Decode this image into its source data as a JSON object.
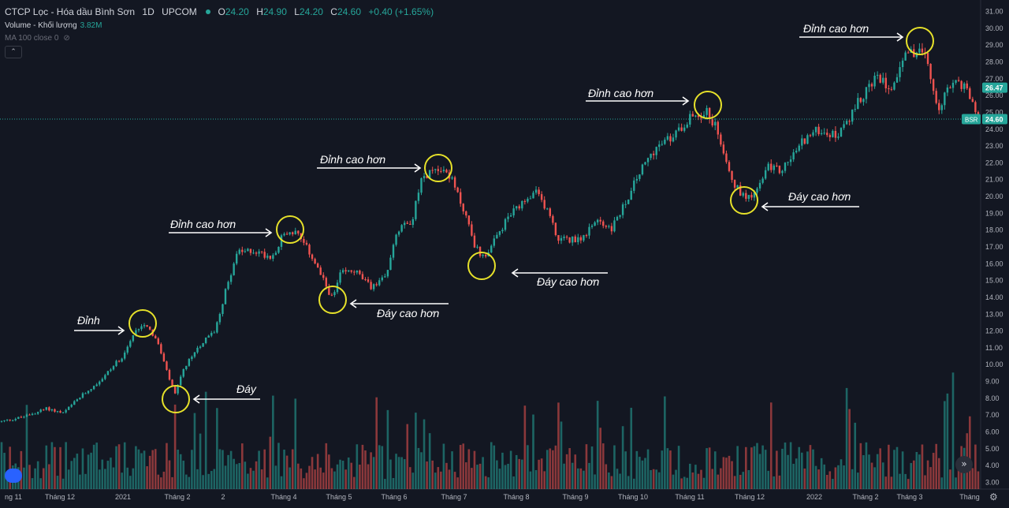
{
  "header": {
    "title": "CTCP Lọc - Hóa dầu Bình Sơn",
    "interval": "1D",
    "exchange": "UPCOM",
    "open_label": "O",
    "open": "24.20",
    "high_label": "H",
    "high": "24.90",
    "low_label": "L",
    "low": "24.20",
    "close_label": "C",
    "close": "24.60",
    "change": "+0.40 (+1.65%)"
  },
  "volume": {
    "label": "Volume - Khối lượng",
    "value": "3.82M"
  },
  "ma": {
    "label": "MA 100 close 0"
  },
  "icons": {
    "collapse": "chevron-up-icon",
    "eye": "eye-off-icon",
    "scroll": "scroll-forward-icon",
    "logo": "tradingview-logo-icon",
    "settings": "gear-icon"
  },
  "colors": {
    "background": "#131722",
    "up": "#26a69a",
    "down": "#ef5350",
    "annotation_circle": "#e6e12a",
    "annotation_text": "#ffffff"
  },
  "chart_data": {
    "type": "candlestick",
    "ylim": [
      2.6,
      31.4
    ],
    "y_ticks": [
      "3.00",
      "4.00",
      "5.00",
      "6.00",
      "7.00",
      "8.00",
      "9.00",
      "10.00",
      "11.00",
      "12.00",
      "13.00",
      "14.00",
      "15.00",
      "16.00",
      "17.00",
      "18.00",
      "19.00",
      "20.00",
      "21.00",
      "22.00",
      "23.00",
      "24.00",
      "25.00",
      "26.00",
      "27.00",
      "28.00",
      "29.00",
      "30.00",
      "31.00"
    ],
    "x_ticks": [
      "ng 11",
      "Tháng 12",
      "2021",
      "Tháng 2",
      "2",
      "Tháng 4",
      "Tháng 5",
      "Tháng 6",
      "Tháng 7",
      "Tháng 8",
      "Tháng 9",
      "Tháng 10",
      "Tháng 11",
      "Tháng 12",
      "2022",
      "Tháng 2",
      "Tháng 3",
      "Tháng"
    ],
    "price_labels": [
      {
        "text": "26.47",
        "value": 26.47,
        "color": "#26a69a"
      },
      {
        "text": "24.60",
        "value": 24.6,
        "color": "#26a69a",
        "tag": "BSR"
      }
    ],
    "last_price": 24.6,
    "path_anchors": [
      [
        0,
        6.6
      ],
      [
        30,
        6.9
      ],
      [
        60,
        7.4
      ],
      [
        80,
        7.1
      ],
      [
        100,
        8.0
      ],
      [
        130,
        9.2
      ],
      [
        155,
        10.5
      ],
      [
        175,
        12.2
      ],
      [
        185,
        12.5
      ],
      [
        200,
        11.3
      ],
      [
        212,
        9.5
      ],
      [
        222,
        8.2
      ],
      [
        232,
        9.6
      ],
      [
        250,
        11.0
      ],
      [
        272,
        12.0
      ],
      [
        290,
        15.0
      ],
      [
        300,
        16.6
      ],
      [
        320,
        16.8
      ],
      [
        345,
        16.4
      ],
      [
        360,
        17.8
      ],
      [
        375,
        17.9
      ],
      [
        395,
        16.5
      ],
      [
        410,
        15.0
      ],
      [
        422,
        13.9
      ],
      [
        432,
        15.4
      ],
      [
        450,
        15.6
      ],
      [
        470,
        14.6
      ],
      [
        490,
        15.2
      ],
      [
        500,
        17.5
      ],
      [
        512,
        18.6
      ],
      [
        522,
        18.5
      ],
      [
        535,
        21.0
      ],
      [
        553,
        21.8
      ],
      [
        570,
        21.3
      ],
      [
        590,
        19.0
      ],
      [
        603,
        17.0
      ],
      [
        612,
        16.4
      ],
      [
        622,
        16.9
      ],
      [
        645,
        18.8
      ],
      [
        665,
        19.6
      ],
      [
        680,
        20.2
      ],
      [
        695,
        19.2
      ],
      [
        707,
        17.5
      ],
      [
        720,
        17.4
      ],
      [
        740,
        17.6
      ],
      [
        760,
        18.6
      ],
      [
        775,
        18.0
      ],
      [
        792,
        19.5
      ],
      [
        810,
        21.3
      ],
      [
        830,
        22.8
      ],
      [
        855,
        23.6
      ],
      [
        870,
        24.5
      ],
      [
        882,
        24.9
      ],
      [
        898,
        25.0
      ],
      [
        910,
        23.9
      ],
      [
        922,
        22.2
      ],
      [
        932,
        20.6
      ],
      [
        945,
        20.0
      ],
      [
        960,
        20.3
      ],
      [
        975,
        21.8
      ],
      [
        990,
        21.5
      ],
      [
        1005,
        22.4
      ],
      [
        1020,
        23.4
      ],
      [
        1040,
        24.0
      ],
      [
        1060,
        23.6
      ],
      [
        1075,
        24.3
      ],
      [
        1088,
        25.6
      ],
      [
        1100,
        26.4
      ],
      [
        1115,
        27.1
      ],
      [
        1130,
        26.5
      ],
      [
        1145,
        28.1
      ],
      [
        1158,
        28.6
      ],
      [
        1168,
        28.7
      ],
      [
        1178,
        27.8
      ],
      [
        1188,
        25.2
      ],
      [
        1198,
        25.9
      ],
      [
        1210,
        26.8
      ],
      [
        1225,
        26.6
      ],
      [
        1242,
        24.6
      ]
    ],
    "annotations": [
      {
        "text": "Đỉnh",
        "kind": "peak",
        "value": 12.6,
        "arrow": "right"
      },
      {
        "text": "Đáy",
        "kind": "trough",
        "value": 8.0,
        "arrow": "left"
      },
      {
        "text": "Đỉnh cao hơn",
        "kind": "peak",
        "value": 17.9,
        "arrow": "right"
      },
      {
        "text": "Đáy cao hơn",
        "kind": "trough",
        "value": 14.1,
        "arrow": "left"
      },
      {
        "text": "Đỉnh cao hơn",
        "kind": "peak",
        "value": 21.8,
        "arrow": "right"
      },
      {
        "text": "Đáy cao hơn",
        "kind": "trough",
        "value": 16.3,
        "arrow": "left"
      },
      {
        "text": "Đỉnh cao hơn",
        "kind": "peak",
        "value": 24.9,
        "arrow": "right"
      },
      {
        "text": "Đáy cao hơn",
        "kind": "trough",
        "value": 19.9,
        "arrow": "left"
      },
      {
        "text": "Đỉnh cao hơn",
        "kind": "peak",
        "value": 29.1,
        "arrow": "right"
      }
    ]
  }
}
